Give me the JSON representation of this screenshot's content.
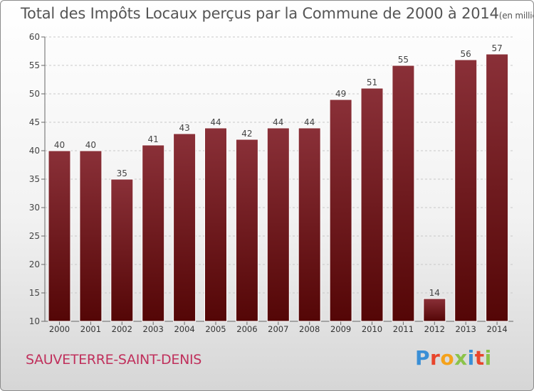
{
  "header": {
    "title": "Total des Impôts Locaux perçus par la Commune de 2000 à 2014",
    "unit": "(en milliers d'€)"
  },
  "footer": {
    "commune": "SAUVETERRE-SAINT-DENIS",
    "logo_text": "Proxiti",
    "logo_colors": [
      "#3a8fd6",
      "#e8452c",
      "#f5a21b",
      "#8bc34a",
      "#3a8fd6",
      "#e8452c",
      "#8bc34a"
    ]
  },
  "chart_data": {
    "type": "bar",
    "title": "Total des Impôts Locaux perçus par la Commune de 2000 à 2014",
    "unit": "(en milliers d'€)",
    "xlabel": "",
    "ylabel": "",
    "categories": [
      "2000",
      "2001",
      "2002",
      "2003",
      "2004",
      "2005",
      "2006",
      "2007",
      "2008",
      "2009",
      "2010",
      "2011",
      "2012",
      "2013",
      "2014"
    ],
    "values": [
      40,
      40,
      35,
      41,
      43,
      44,
      42,
      44,
      44,
      49,
      51,
      55,
      14,
      56,
      57
    ],
    "data_labels": [
      "40",
      "40",
      "35",
      "41",
      "43",
      "44",
      "42",
      "44",
      "44",
      "49",
      "51",
      "55",
      "14",
      "56",
      "57"
    ],
    "ylim": [
      10,
      60
    ],
    "yticks": [
      10,
      15,
      20,
      25,
      30,
      35,
      40,
      45,
      50,
      55,
      60
    ],
    "ytick_labels": [
      "10",
      "15",
      "20",
      "25",
      "30",
      "35",
      "40",
      "45",
      "50",
      "55",
      "60"
    ],
    "grid": true,
    "bar_color_top": "#8a3038",
    "bar_color_bottom": "#540606"
  }
}
